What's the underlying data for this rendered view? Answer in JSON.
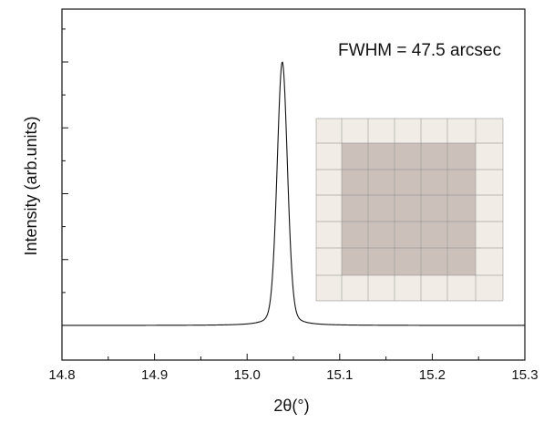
{
  "chart_data": {
    "type": "line",
    "title": "",
    "xlabel": "2θ(°)",
    "ylabel": "Intensity (arb.units)",
    "xlim": [
      14.8,
      15.3
    ],
    "ylim": [
      0,
      1.1
    ],
    "x_ticks": [
      "14.8",
      "14.9",
      "15.0",
      "15.1",
      "15.2",
      "15.3"
    ],
    "y_tick_labels_shown": false,
    "grid": false,
    "legend": "none",
    "annotation": "FWHM = 47.5 arcsec",
    "series": [
      {
        "peak_position": 15.038,
        "peak_height": 1.0,
        "baseline": 0.0,
        "fwhm_deg": 0.0132,
        "color": "#111111"
      }
    ],
    "inset": {
      "content": "photo of square crystal on grid paper",
      "paper_color": "#f1ede6",
      "crystal_color": "#c9bfb7",
      "grid_color": "#8e8e8e"
    }
  }
}
